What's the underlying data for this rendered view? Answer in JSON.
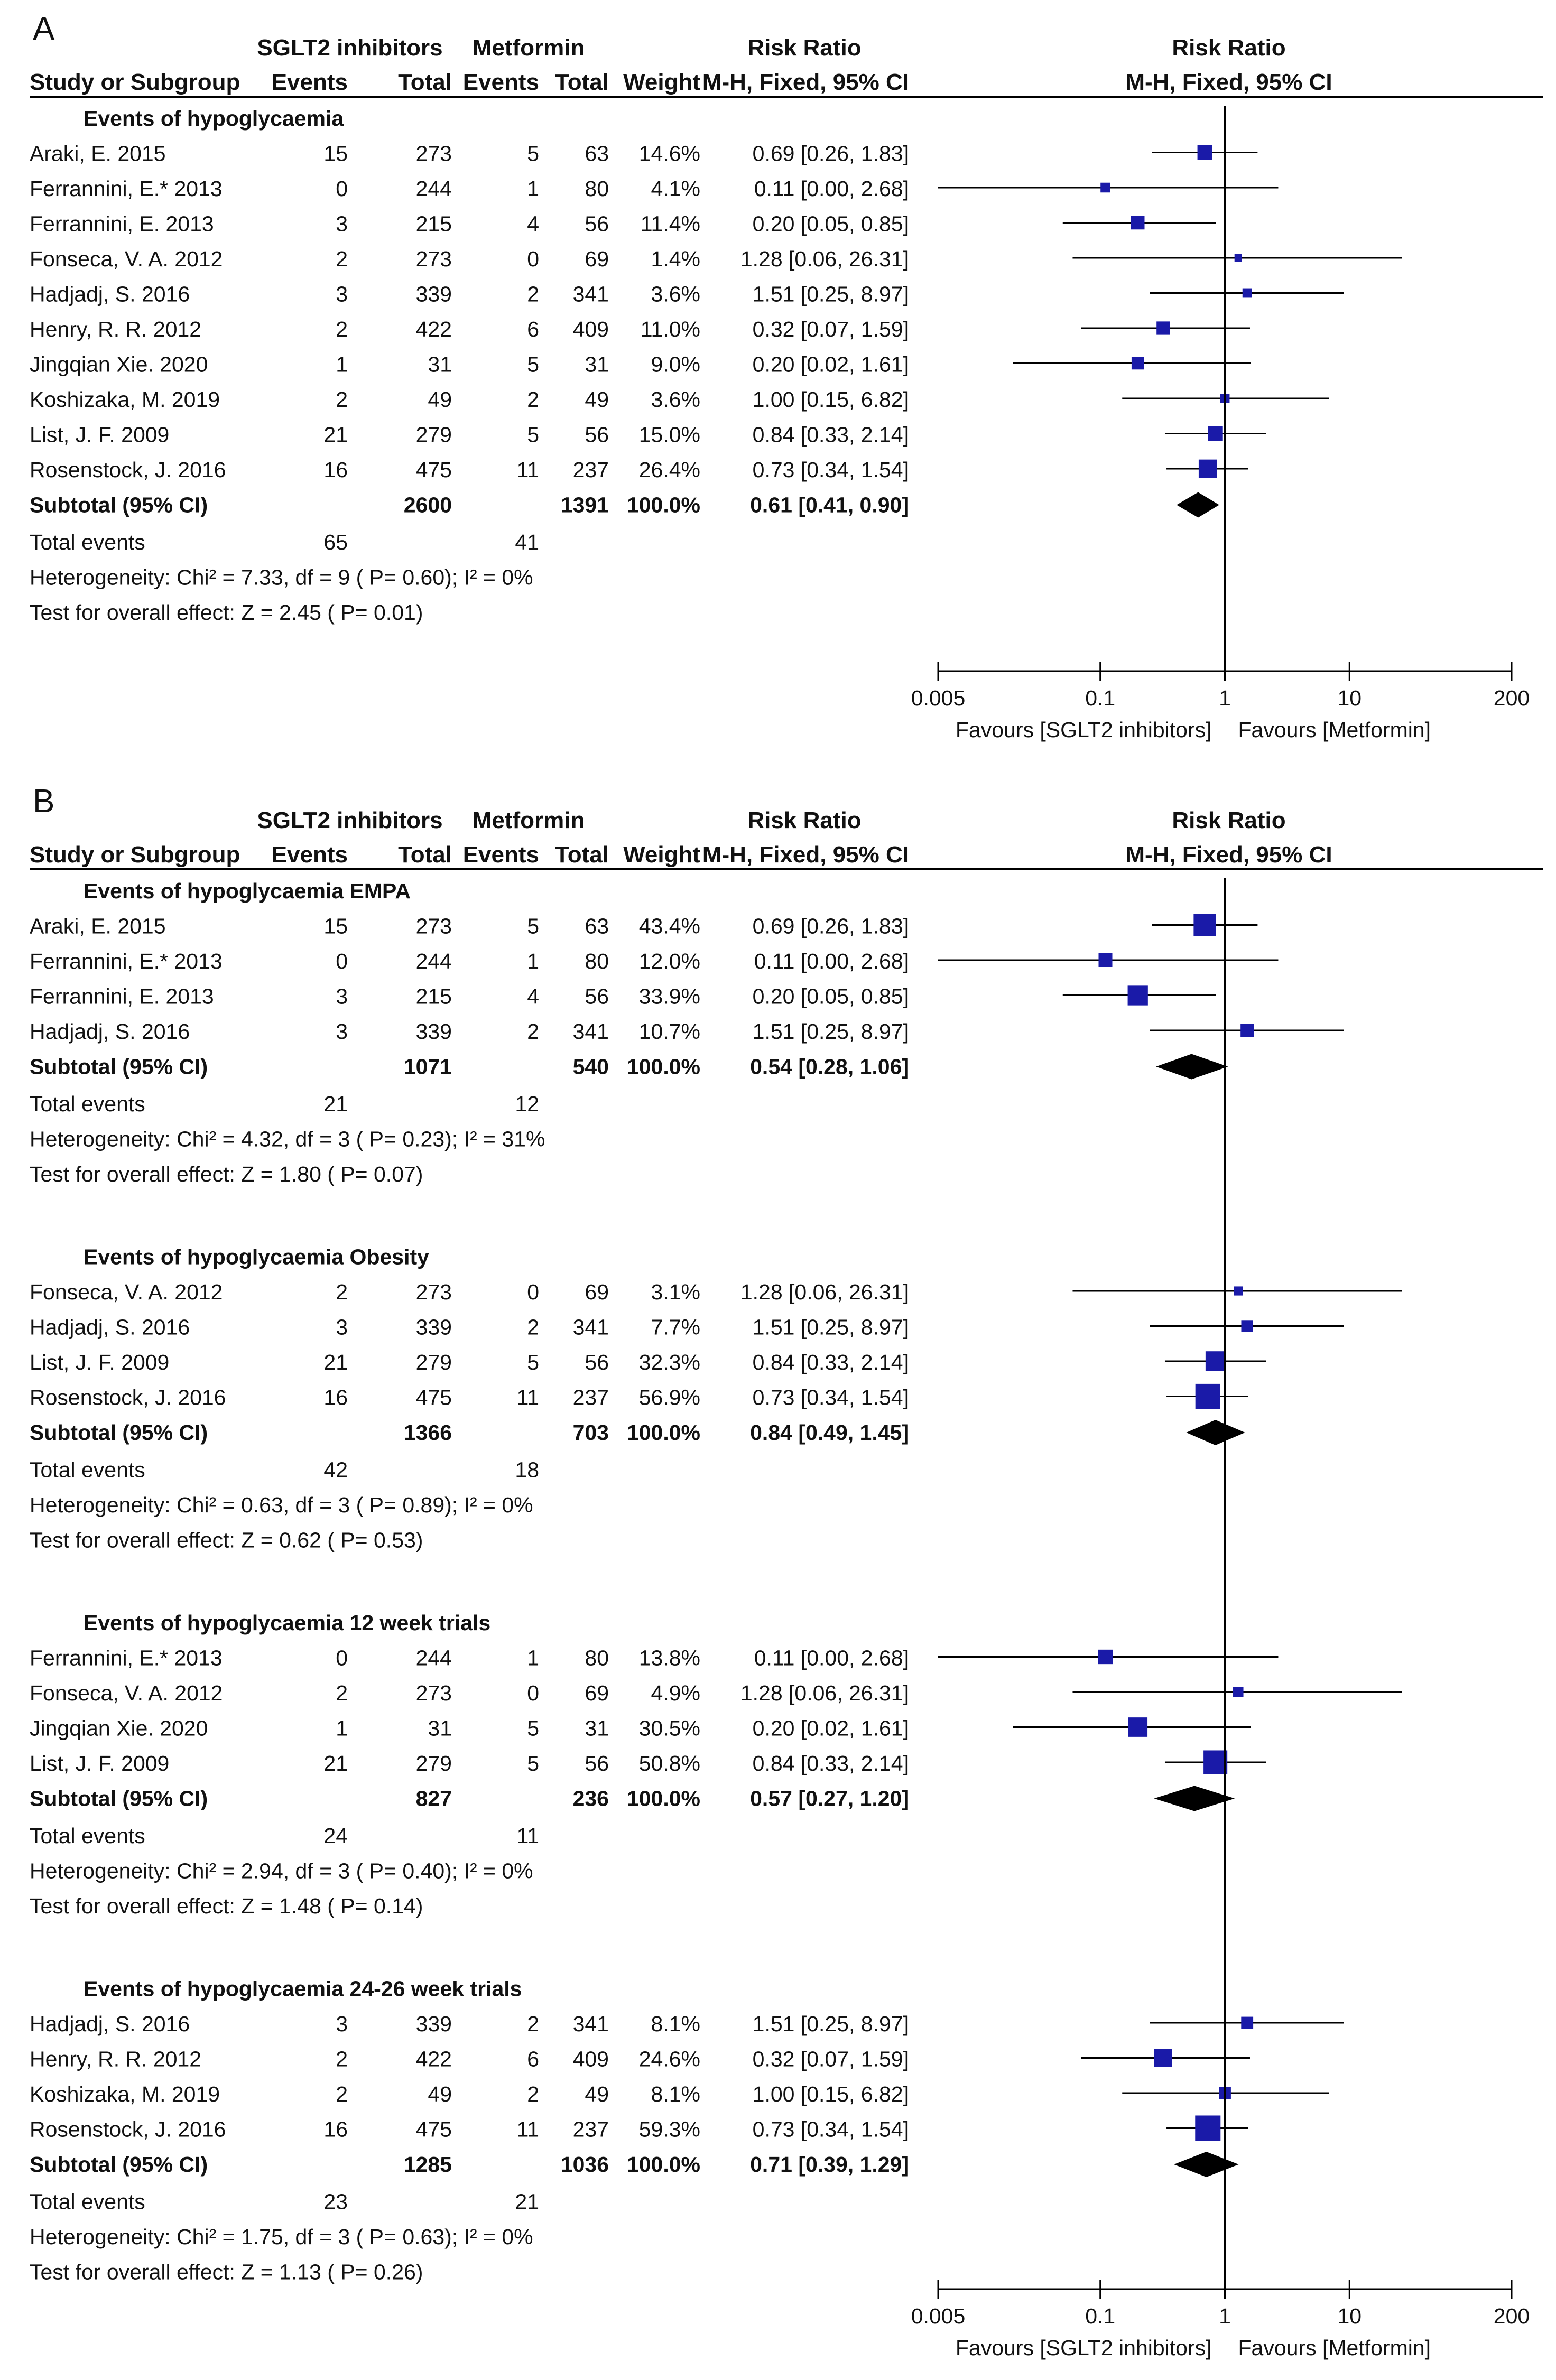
{
  "chart_data": {
    "type": "forest",
    "x_scale": "log",
    "xlim": [
      0.005,
      200
    ],
    "ticks": [
      {
        "value": 0.005,
        "label": "0.005"
      },
      {
        "value": 0.1,
        "label": "0.1"
      },
      {
        "value": 1,
        "label": "1"
      },
      {
        "value": 10,
        "label": "10"
      },
      {
        "value": 200,
        "label": "200"
      }
    ],
    "favours_left": "Favours [SGLT2 inhibitors]",
    "favours_right": "Favours [Metformin]",
    "headers": {
      "group1": "SGLT2 inhibitors",
      "group2": "Metformin",
      "rr_col": "Risk Ratio",
      "rr_plot": "Risk Ratio",
      "study": "Study or Subgroup",
      "events": "Events",
      "total": "Total",
      "events2": "Events",
      "total2": "Total",
      "weight": "Weight",
      "method": "M-H, Fixed, 95% CI",
      "method_plot": "M-H, Fixed, 95% CI"
    },
    "panels": [
      {
        "letter": "A",
        "groups": [
          {
            "title": "Events of hypoglycaemia",
            "studies": [
              {
                "name": "Araki, E. 2015",
                "e1": "15",
                "n1": "273",
                "e2": "5",
                "n2": "63",
                "weight": "14.6%",
                "ci_text": "0.69 [0.26, 1.83]",
                "rr": 0.69,
                "lo": 0.26,
                "hi": 1.83
              },
              {
                "name": "Ferrannini, E.* 2013",
                "e1": "0",
                "n1": "244",
                "e2": "1",
                "n2": "80",
                "weight": "4.1%",
                "ci_text": "0.11 [0.00, 2.68]",
                "rr": 0.11,
                "lo": 0.0,
                "hi": 2.68
              },
              {
                "name": "Ferrannini, E. 2013",
                "e1": "3",
                "n1": "215",
                "e2": "4",
                "n2": "56",
                "weight": "11.4%",
                "ci_text": "0.20 [0.05, 0.85]",
                "rr": 0.2,
                "lo": 0.05,
                "hi": 0.85
              },
              {
                "name": "Fonseca, V. A. 2012",
                "e1": "2",
                "n1": "273",
                "e2": "0",
                "n2": "69",
                "weight": "1.4%",
                "ci_text": "1.28 [0.06, 26.31]",
                "rr": 1.28,
                "lo": 0.06,
                "hi": 26.31
              },
              {
                "name": "Hadjadj, S. 2016",
                "e1": "3",
                "n1": "339",
                "e2": "2",
                "n2": "341",
                "weight": "3.6%",
                "ci_text": "1.51 [0.25, 8.97]",
                "rr": 1.51,
                "lo": 0.25,
                "hi": 8.97
              },
              {
                "name": "Henry, R. R. 2012",
                "e1": "2",
                "n1": "422",
                "e2": "6",
                "n2": "409",
                "weight": "11.0%",
                "ci_text": "0.32 [0.07, 1.59]",
                "rr": 0.32,
                "lo": 0.07,
                "hi": 1.59
              },
              {
                "name": "Jingqian Xie. 2020",
                "e1": "1",
                "n1": "31",
                "e2": "5",
                "n2": "31",
                "weight": "9.0%",
                "ci_text": "0.20 [0.02, 1.61]",
                "rr": 0.2,
                "lo": 0.02,
                "hi": 1.61
              },
              {
                "name": "Koshizaka, M. 2019",
                "e1": "2",
                "n1": "49",
                "e2": "2",
                "n2": "49",
                "weight": "3.6%",
                "ci_text": "1.00 [0.15, 6.82]",
                "rr": 1.0,
                "lo": 0.15,
                "hi": 6.82
              },
              {
                "name": "List, J. F. 2009",
                "e1": "21",
                "n1": "279",
                "e2": "5",
                "n2": "56",
                "weight": "15.0%",
                "ci_text": "0.84 [0.33, 2.14]",
                "rr": 0.84,
                "lo": 0.33,
                "hi": 2.14
              },
              {
                "name": "Rosenstock, J. 2016",
                "e1": "16",
                "n1": "475",
                "e2": "11",
                "n2": "237",
                "weight": "26.4%",
                "ci_text": "0.73 [0.34, 1.54]",
                "rr": 0.73,
                "lo": 0.34,
                "hi": 1.54
              }
            ],
            "subtotal": {
              "label": "Subtotal (95% CI)",
              "n1": "2600",
              "n2": "1391",
              "weight": "100.0%",
              "ci_text": "0.61 [0.41, 0.90]",
              "rr": 0.61,
              "lo": 0.41,
              "hi": 0.9
            },
            "total_events": {
              "label": "Total events",
              "e1": "65",
              "e2": "41"
            },
            "heterogeneity": "Heterogeneity: Chi² = 7.33, df = 9 ( P= 0.60); I² = 0%",
            "overall": "Test for overall effect: Z = 2.45 ( P= 0.01)"
          }
        ]
      },
      {
        "letter": "B",
        "groups": [
          {
            "title": "Events of hypoglycaemia EMPA",
            "studies": [
              {
                "name": "Araki, E. 2015",
                "e1": "15",
                "n1": "273",
                "e2": "5",
                "n2": "63",
                "weight": "43.4%",
                "ci_text": "0.69 [0.26, 1.83]",
                "rr": 0.69,
                "lo": 0.26,
                "hi": 1.83
              },
              {
                "name": "Ferrannini, E.* 2013",
                "e1": "0",
                "n1": "244",
                "e2": "1",
                "n2": "80",
                "weight": "12.0%",
                "ci_text": "0.11 [0.00, 2.68]",
                "rr": 0.11,
                "lo": 0.0,
                "hi": 2.68
              },
              {
                "name": "Ferrannini, E. 2013",
                "e1": "3",
                "n1": "215",
                "e2": "4",
                "n2": "56",
                "weight": "33.9%",
                "ci_text": "0.20 [0.05, 0.85]",
                "rr": 0.2,
                "lo": 0.05,
                "hi": 0.85
              },
              {
                "name": "Hadjadj, S. 2016",
                "e1": "3",
                "n1": "339",
                "e2": "2",
                "n2": "341",
                "weight": "10.7%",
                "ci_text": "1.51 [0.25, 8.97]",
                "rr": 1.51,
                "lo": 0.25,
                "hi": 8.97
              }
            ],
            "subtotal": {
              "label": "Subtotal (95% CI)",
              "n1": "1071",
              "n2": "540",
              "weight": "100.0%",
              "ci_text": "0.54 [0.28, 1.06]",
              "rr": 0.54,
              "lo": 0.28,
              "hi": 1.06
            },
            "total_events": {
              "label": "Total events",
              "e1": "21",
              "e2": "12"
            },
            "heterogeneity": "Heterogeneity: Chi² = 4.32, df = 3 ( P= 0.23); I² = 31%",
            "overall": "Test for overall effect: Z = 1.80 ( P= 0.07)"
          },
          {
            "title": "Events of hypoglycaemia Obesity",
            "studies": [
              {
                "name": "Fonseca, V. A. 2012",
                "e1": "2",
                "n1": "273",
                "e2": "0",
                "n2": "69",
                "weight": "3.1%",
                "ci_text": "1.28 [0.06, 26.31]",
                "rr": 1.28,
                "lo": 0.06,
                "hi": 26.31
              },
              {
                "name": "Hadjadj, S. 2016",
                "e1": "3",
                "n1": "339",
                "e2": "2",
                "n2": "341",
                "weight": "7.7%",
                "ci_text": "1.51 [0.25, 8.97]",
                "rr": 1.51,
                "lo": 0.25,
                "hi": 8.97
              },
              {
                "name": "List, J. F. 2009",
                "e1": "21",
                "n1": "279",
                "e2": "5",
                "n2": "56",
                "weight": "32.3%",
                "ci_text": "0.84 [0.33, 2.14]",
                "rr": 0.84,
                "lo": 0.33,
                "hi": 2.14
              },
              {
                "name": "Rosenstock, J. 2016",
                "e1": "16",
                "n1": "475",
                "e2": "11",
                "n2": "237",
                "weight": "56.9%",
                "ci_text": "0.73 [0.34, 1.54]",
                "rr": 0.73,
                "lo": 0.34,
                "hi": 1.54
              }
            ],
            "subtotal": {
              "label": "Subtotal (95% CI)",
              "n1": "1366",
              "n2": "703",
              "weight": "100.0%",
              "ci_text": "0.84 [0.49, 1.45]",
              "rr": 0.84,
              "lo": 0.49,
              "hi": 1.45
            },
            "total_events": {
              "label": "Total events",
              "e1": "42",
              "e2": "18"
            },
            "heterogeneity": "Heterogeneity: Chi² = 0.63, df = 3 ( P= 0.89); I² = 0%",
            "overall": "Test for overall effect: Z = 0.62 ( P= 0.53)"
          },
          {
            "title": "Events of hypoglycaemia 12 week trials",
            "studies": [
              {
                "name": "Ferrannini, E.* 2013",
                "e1": "0",
                "n1": "244",
                "e2": "1",
                "n2": "80",
                "weight": "13.8%",
                "ci_text": "0.11 [0.00, 2.68]",
                "rr": 0.11,
                "lo": 0.0,
                "hi": 2.68
              },
              {
                "name": "Fonseca, V. A. 2012",
                "e1": "2",
                "n1": "273",
                "e2": "0",
                "n2": "69",
                "weight": "4.9%",
                "ci_text": "1.28 [0.06, 26.31]",
                "rr": 1.28,
                "lo": 0.06,
                "hi": 26.31
              },
              {
                "name": "Jingqian Xie. 2020",
                "e1": "1",
                "n1": "31",
                "e2": "5",
                "n2": "31",
                "weight": "30.5%",
                "ci_text": "0.20 [0.02, 1.61]",
                "rr": 0.2,
                "lo": 0.02,
                "hi": 1.61
              },
              {
                "name": "List, J. F. 2009",
                "e1": "21",
                "n1": "279",
                "e2": "5",
                "n2": "56",
                "weight": "50.8%",
                "ci_text": "0.84 [0.33, 2.14]",
                "rr": 0.84,
                "lo": 0.33,
                "hi": 2.14
              }
            ],
            "subtotal": {
              "label": "Subtotal (95% CI)",
              "n1": "827",
              "n2": "236",
              "weight": "100.0%",
              "ci_text": "0.57 [0.27, 1.20]",
              "rr": 0.57,
              "lo": 0.27,
              "hi": 1.2
            },
            "total_events": {
              "label": "Total events",
              "e1": "24",
              "e2": "11"
            },
            "heterogeneity": "Heterogeneity: Chi² = 2.94, df = 3 ( P= 0.40); I² = 0%",
            "overall": "Test for overall effect: Z = 1.48 ( P= 0.14)"
          },
          {
            "title": "Events of hypoglycaemia 24-26 week trials",
            "studies": [
              {
                "name": "Hadjadj, S. 2016",
                "e1": "3",
                "n1": "339",
                "e2": "2",
                "n2": "341",
                "weight": "8.1%",
                "ci_text": "1.51 [0.25, 8.97]",
                "rr": 1.51,
                "lo": 0.25,
                "hi": 8.97
              },
              {
                "name": "Henry, R. R. 2012",
                "e1": "2",
                "n1": "422",
                "e2": "6",
                "n2": "409",
                "weight": "24.6%",
                "ci_text": "0.32 [0.07, 1.59]",
                "rr": 0.32,
                "lo": 0.07,
                "hi": 1.59
              },
              {
                "name": "Koshizaka, M. 2019",
                "e1": "2",
                "n1": "49",
                "e2": "2",
                "n2": "49",
                "weight": "8.1%",
                "ci_text": "1.00 [0.15, 6.82]",
                "rr": 1.0,
                "lo": 0.15,
                "hi": 6.82
              },
              {
                "name": "Rosenstock, J. 2016",
                "e1": "16",
                "n1": "475",
                "e2": "11",
                "n2": "237",
                "weight": "59.3%",
                "ci_text": "0.73 [0.34, 1.54]",
                "rr": 0.73,
                "lo": 0.34,
                "hi": 1.54
              }
            ],
            "subtotal": {
              "label": "Subtotal (95% CI)",
              "n1": "1285",
              "n2": "1036",
              "weight": "100.0%",
              "ci_text": "0.71 [0.39, 1.29]",
              "rr": 0.71,
              "lo": 0.39,
              "hi": 1.29
            },
            "total_events": {
              "label": "Total events",
              "e1": "23",
              "e2": "21"
            },
            "heterogeneity": "Heterogeneity: Chi² = 1.75, df = 3 ( P= 0.63); I² = 0%",
            "overall": "Test for overall effect: Z = 1.13 ( P= 0.26)"
          }
        ]
      }
    ]
  },
  "colors": {
    "marker": "#1a1aa8",
    "diamond": "#000000",
    "line": "#000000",
    "text": "#111111"
  }
}
